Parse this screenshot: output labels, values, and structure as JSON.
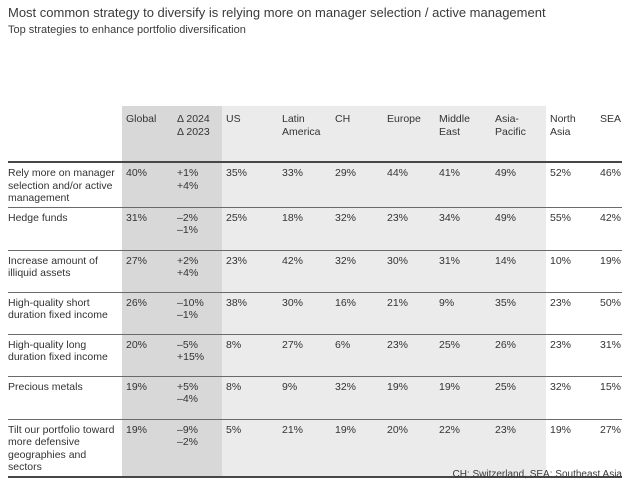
{
  "colors": {
    "column_group_dark_bg": "#d8d8d8",
    "column_group_light_bg": "#ebebeb",
    "heavy_rule": "#474747",
    "light_rule": "#6a6a6a",
    "text": "#333333"
  },
  "chart_data": {
    "type": "table",
    "title": "Most common strategy to diversify is relying more on manager selection / active management",
    "subtitle": "Top strategies to enhance portfolio diversification",
    "footnote": "CH: Switzerland, SEA: Southeast Asia",
    "columns": [
      {
        "key": "global",
        "label": "Global",
        "group": "dark"
      },
      {
        "key": "delta",
        "label": "Δ 2024\nΔ 2023",
        "group": "dark"
      },
      {
        "key": "us",
        "label": "US",
        "group": "light"
      },
      {
        "key": "latin-america",
        "label": "Latin America",
        "group": "light"
      },
      {
        "key": "ch",
        "label": "CH",
        "group": "light"
      },
      {
        "key": "europe",
        "label": "Europe",
        "group": "light"
      },
      {
        "key": "middle-east",
        "label": "Middle East",
        "group": "light"
      },
      {
        "key": "asia-pacific",
        "label": "Asia-Pacific",
        "group": "light"
      },
      {
        "key": "north-asia",
        "label": "North Asia",
        "group": "white"
      },
      {
        "key": "sea",
        "label": "SEA",
        "group": "white"
      }
    ],
    "rows": [
      {
        "label": "Rely more on manager selection and/or active management",
        "cells": [
          "40%",
          "+1%\n+4%",
          "35%",
          "33%",
          "29%",
          "44%",
          "41%",
          "49%",
          "52%",
          "46%"
        ]
      },
      {
        "label": "Hedge funds",
        "cells": [
          "31%",
          "–2%\n–1%",
          "25%",
          "18%",
          "32%",
          "23%",
          "34%",
          "49%",
          "55%",
          "42%"
        ]
      },
      {
        "label": "Increase amount of illiquid assets",
        "cells": [
          "27%",
          "+2%\n+4%",
          "23%",
          "42%",
          "32%",
          "30%",
          "31%",
          "14%",
          "10%",
          "19%"
        ]
      },
      {
        "label": "High-quality short duration fixed income",
        "cells": [
          "26%",
          "–10%\n–1%",
          "38%",
          "30%",
          "16%",
          "21%",
          "9%",
          "35%",
          "23%",
          "50%"
        ]
      },
      {
        "label": "High-quality long duration fixed income",
        "cells": [
          "20%",
          "–5%\n+15%",
          "8%",
          "27%",
          "6%",
          "23%",
          "25%",
          "26%",
          "23%",
          "31%"
        ]
      },
      {
        "label": "Precious metals",
        "cells": [
          "19%",
          "+5%\n–4%",
          "8%",
          "9%",
          "32%",
          "19%",
          "19%",
          "25%",
          "32%",
          "15%"
        ]
      },
      {
        "label": "Tilt our portfolio toward more defensive geographies and sectors",
        "cells": [
          "19%",
          "–9%\n–2%",
          "5%",
          "21%",
          "19%",
          "20%",
          "22%",
          "23%",
          "19%",
          "27%"
        ]
      }
    ]
  }
}
